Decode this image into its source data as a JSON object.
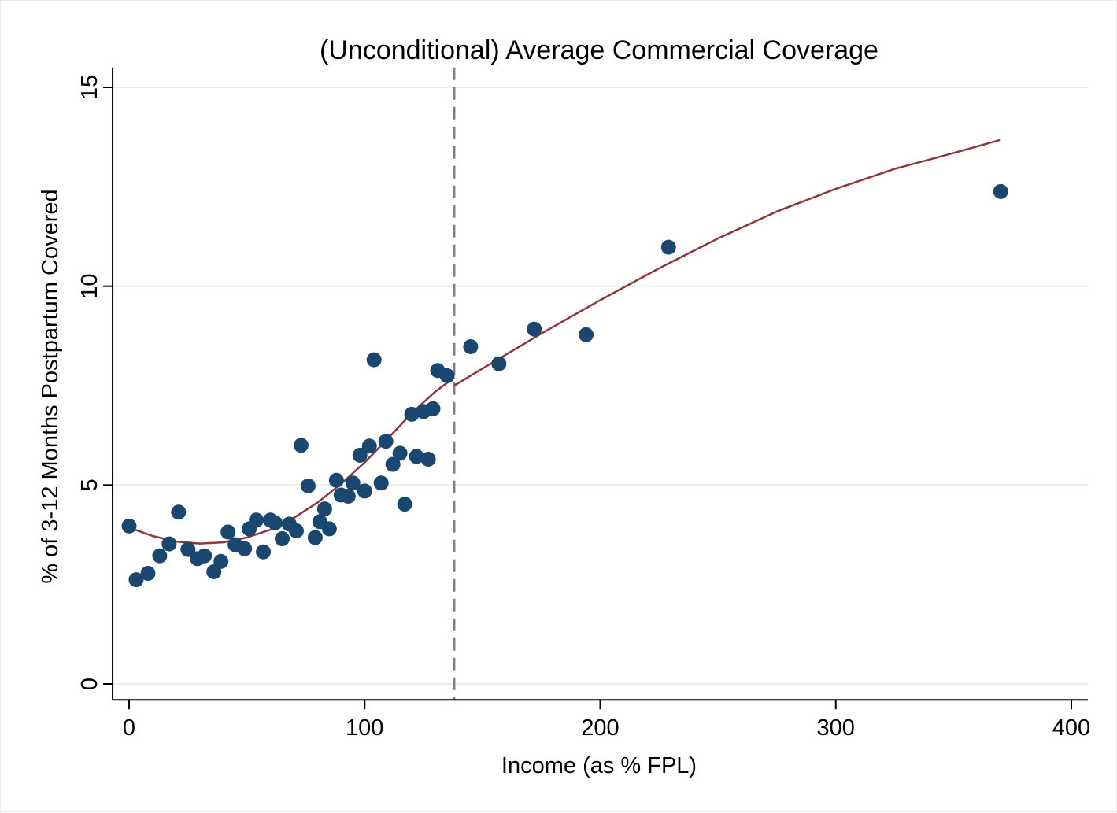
{
  "chart_data": {
    "type": "scatter",
    "title": "(Unconditional) Average Commercial Coverage",
    "xlabel": "Income (as % FPL)",
    "ylabel": "% of 3-12 Months Postpartum Covered",
    "xlim": [
      -7,
      407
    ],
    "ylim": [
      -0.4,
      15.5
    ],
    "xticks": [
      0,
      100,
      200,
      300,
      400
    ],
    "yticks": [
      0,
      5,
      10,
      15
    ],
    "grid": "horizontal",
    "cutoff_x": 138,
    "colors": {
      "points": "#1a476f",
      "fit": "#90353b",
      "cutoff": "#808080",
      "grid": "#e7ecf0"
    },
    "points": [
      [
        0,
        3.97
      ],
      [
        3,
        2.62
      ],
      [
        8,
        2.78
      ],
      [
        13,
        3.22
      ],
      [
        17,
        3.52
      ],
      [
        21,
        4.32
      ],
      [
        25,
        3.38
      ],
      [
        29,
        3.15
      ],
      [
        32,
        3.22
      ],
      [
        36,
        2.82
      ],
      [
        39,
        3.08
      ],
      [
        42,
        3.82
      ],
      [
        45,
        3.5
      ],
      [
        49,
        3.4
      ],
      [
        51,
        3.9
      ],
      [
        54,
        4.12
      ],
      [
        57,
        3.32
      ],
      [
        60,
        4.12
      ],
      [
        62,
        4.05
      ],
      [
        65,
        3.65
      ],
      [
        68,
        4.02
      ],
      [
        71,
        3.85
      ],
      [
        73,
        6.0
      ],
      [
        76,
        4.98
      ],
      [
        79,
        3.68
      ],
      [
        81,
        4.08
      ],
      [
        83,
        4.4
      ],
      [
        85,
        3.9
      ],
      [
        88,
        5.12
      ],
      [
        90,
        4.75
      ],
      [
        93,
        4.72
      ],
      [
        95,
        5.05
      ],
      [
        98,
        5.75
      ],
      [
        100,
        4.85
      ],
      [
        102,
        5.98
      ],
      [
        104,
        8.15
      ],
      [
        107,
        5.05
      ],
      [
        109,
        6.1
      ],
      [
        112,
        5.52
      ],
      [
        115,
        5.8
      ],
      [
        117,
        4.52
      ],
      [
        120,
        6.78
      ],
      [
        122,
        5.72
      ],
      [
        125,
        6.85
      ],
      [
        127,
        5.65
      ],
      [
        129,
        6.92
      ],
      [
        131,
        7.88
      ],
      [
        135,
        7.75
      ],
      [
        145,
        8.48
      ],
      [
        157,
        8.05
      ],
      [
        172,
        8.92
      ],
      [
        194,
        8.78
      ],
      [
        229,
        10.98
      ],
      [
        370,
        12.38
      ]
    ],
    "fit_left": [
      [
        0,
        3.93
      ],
      [
        10,
        3.72
      ],
      [
        20,
        3.58
      ],
      [
        30,
        3.53
      ],
      [
        40,
        3.56
      ],
      [
        50,
        3.68
      ],
      [
        60,
        3.88
      ],
      [
        70,
        4.18
      ],
      [
        80,
        4.56
      ],
      [
        90,
        5.03
      ],
      [
        100,
        5.57
      ],
      [
        110,
        6.18
      ],
      [
        120,
        6.81
      ],
      [
        130,
        7.35
      ],
      [
        138,
        7.7
      ]
    ],
    "fit_right": [
      [
        138,
        7.5
      ],
      [
        150,
        7.93
      ],
      [
        175,
        8.81
      ],
      [
        200,
        9.65
      ],
      [
        225,
        10.45
      ],
      [
        250,
        11.2
      ],
      [
        275,
        11.88
      ],
      [
        300,
        12.45
      ],
      [
        325,
        12.95
      ],
      [
        350,
        13.35
      ],
      [
        370,
        13.68
      ]
    ]
  }
}
